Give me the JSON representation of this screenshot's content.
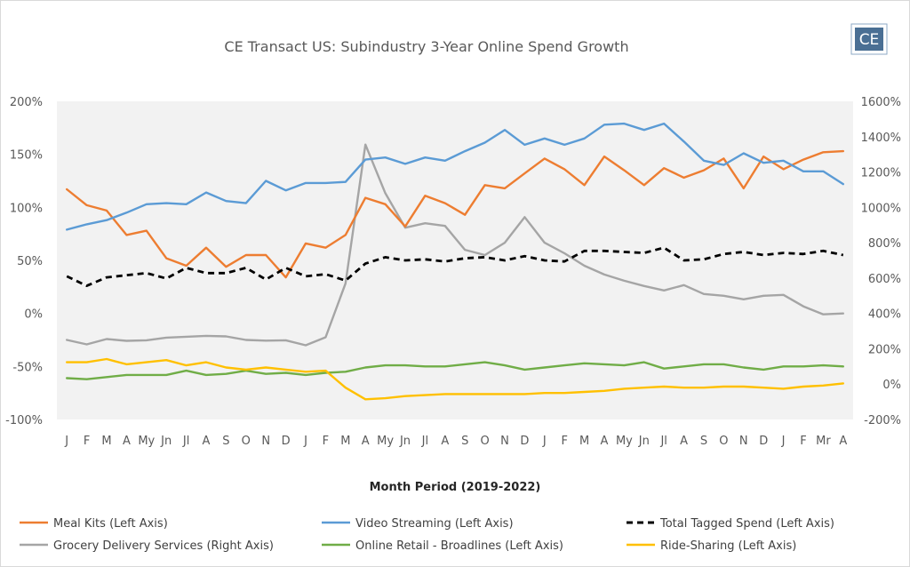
{
  "chart_data": {
    "type": "line",
    "title": "CE Transact US: Subindustry 3-Year Online Spend Growth",
    "logo_text": "CE",
    "xlabel": "Month Period (2019-2022)",
    "x": [
      "J",
      "F",
      "M",
      "A",
      "My",
      "Jn",
      "Jl",
      "A",
      "S",
      "O",
      "N",
      "D",
      "J",
      "F",
      "M",
      "A",
      "My",
      "Jn",
      "Jl",
      "A",
      "S",
      "O",
      "N",
      "D",
      "J",
      "F",
      "M",
      "A",
      "My",
      "Jn",
      "Jl",
      "A",
      "S",
      "O",
      "N",
      "D",
      "J",
      "F",
      "Mr",
      "A"
    ],
    "left_axis": {
      "ylim": [
        -100,
        200
      ],
      "ticks": [
        -100,
        -50,
        0,
        50,
        100,
        150,
        200
      ],
      "tick_labels": [
        "-100%",
        "-50%",
        "0%",
        "50%",
        "100%",
        "150%",
        "200%"
      ]
    },
    "right_axis": {
      "ylim": [
        -200,
        1600
      ],
      "ticks": [
        -200,
        0,
        200,
        400,
        600,
        800,
        1000,
        1200,
        1400,
        1600
      ],
      "tick_labels": [
        "-200%",
        "0%",
        "200%",
        "400%",
        "600%",
        "800%",
        "1000%",
        "1200%",
        "1400%",
        "1600%"
      ]
    },
    "grid": false,
    "legend_position": "bottom",
    "series": [
      {
        "name": "Meal Kits (Left Axis)",
        "axis": "left",
        "color": "#ED7D31",
        "dash": false,
        "values": [
          117,
          102,
          97,
          74,
          78,
          52,
          45,
          62,
          44,
          55,
          55,
          34,
          66,
          62,
          74,
          109,
          103,
          82,
          111,
          104,
          93,
          121,
          118,
          132,
          146,
          136,
          121,
          148,
          135,
          121,
          137,
          128,
          135,
          146,
          118,
          148,
          136,
          145,
          152,
          153
        ]
      },
      {
        "name": "Video Streaming  (Left Axis)",
        "axis": "left",
        "color": "#5B9BD5",
        "dash": false,
        "values": [
          79,
          84,
          88,
          95,
          103,
          104,
          103,
          114,
          106,
          104,
          125,
          116,
          123,
          123,
          124,
          145,
          147,
          141,
          147,
          144,
          153,
          161,
          173,
          159,
          165,
          159,
          165,
          178,
          179,
          173,
          179,
          162,
          144,
          140,
          151,
          142,
          144,
          134,
          134,
          122
        ]
      },
      {
        "name": "Total Tagged Spend  (Left Axis)",
        "axis": "left",
        "color": "#000000",
        "dash": true,
        "values": [
          35,
          26,
          34,
          36,
          38,
          33,
          43,
          38,
          38,
          43,
          32,
          43,
          35,
          37,
          31,
          47,
          53,
          50,
          51,
          49,
          52,
          53,
          50,
          54,
          50,
          49,
          59,
          59,
          58,
          57,
          62,
          50,
          51,
          56,
          58,
          55,
          57,
          56,
          59,
          55
        ]
      },
      {
        "name": "Grocery Delivery Services (Right Axis)",
        "axis": "right",
        "color": "#A5A5A5",
        "dash": false,
        "values": [
          250,
          225,
          255,
          245,
          248,
          263,
          268,
          273,
          270,
          250,
          246,
          248,
          220,
          265,
          570,
          1355,
          1080,
          885,
          910,
          895,
          760,
          730,
          800,
          945,
          800,
          740,
          670,
          620,
          585,
          555,
          530,
          560,
          510,
          500,
          480,
          500,
          505,
          440,
          395,
          400
        ]
      },
      {
        "name": "Online Retail - Broadlines  (Left Axis)",
        "axis": "left",
        "color": "#70AD47",
        "dash": false,
        "values": [
          -61,
          -62,
          -60,
          -58,
          -58,
          -58,
          -54,
          -58,
          -57,
          -54,
          -57,
          -56,
          -58,
          -56,
          -55,
          -51,
          -49,
          -49,
          -50,
          -50,
          -48,
          -46,
          -49,
          -53,
          -51,
          -49,
          -47,
          -48,
          -49,
          -46,
          -52,
          -50,
          -48,
          -48,
          -51,
          -53,
          -50,
          -50,
          -49,
          -50
        ]
      },
      {
        "name": "Ride-Sharing  (Left Axis)",
        "axis": "left",
        "color": "#FFC000",
        "dash": false,
        "values": [
          -46,
          -46,
          -43,
          -48,
          -46,
          -44,
          -49,
          -46,
          -51,
          -53,
          -51,
          -53,
          -55,
          -54,
          -70,
          -81,
          -80,
          -78,
          -77,
          -76,
          -76,
          -76,
          -76,
          -76,
          -75,
          -75,
          -74,
          -73,
          -71,
          -70,
          -69,
          -70,
          -70,
          -69,
          -69,
          -70,
          -71,
          -69,
          -68,
          -66
        ]
      }
    ]
  }
}
